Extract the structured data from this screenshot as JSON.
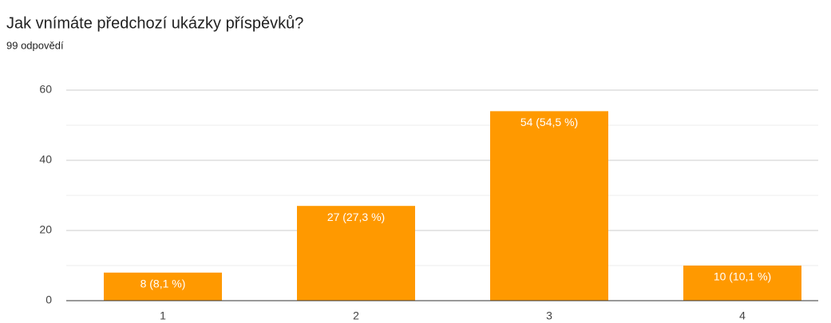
{
  "chart_data": {
    "type": "bar",
    "title": "Jak vnímáte předchozí ukázky příspěvků?",
    "subtitle": "99 odpovědí",
    "categories": [
      "1",
      "2",
      "3",
      "4"
    ],
    "values": [
      8,
      27,
      54,
      10
    ],
    "value_labels": [
      "8 (8,1 %)",
      "27 (27,3 %)",
      "54 (54,5 %)",
      "10 (10,1 %)"
    ],
    "color": "#ff9900",
    "ylim": [
      0,
      60
    ],
    "yticks": [
      0,
      20,
      40,
      60
    ],
    "minor_yticks": [
      10,
      30,
      50
    ],
    "grid": true
  }
}
